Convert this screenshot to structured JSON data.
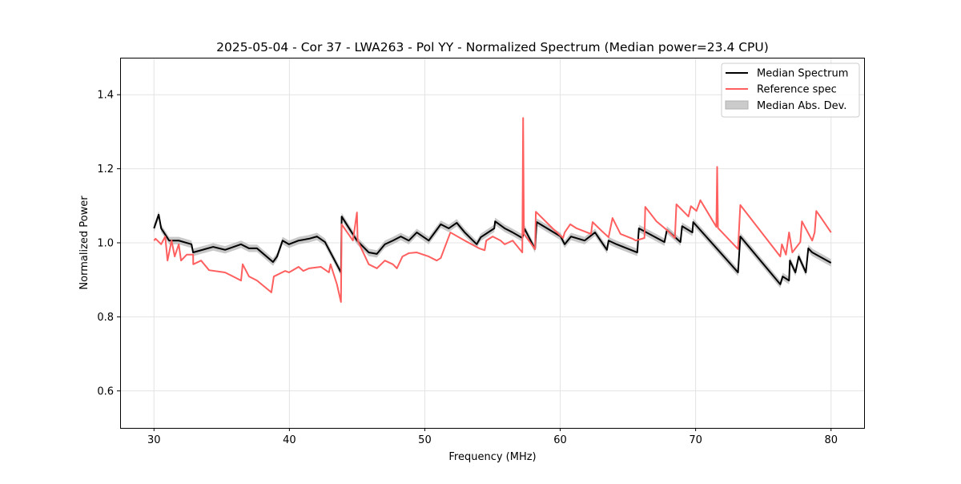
{
  "chart_data": {
    "type": "line",
    "title": "2025-05-04 - Cor 37 - LWA263 - Pol YY - Normalized Spectrum (Median power=23.4 CPU)",
    "xlabel": "Frequency (MHz)",
    "ylabel": "Normalized Power",
    "xlim": [
      27.5,
      82.5
    ],
    "ylim": [
      0.5,
      1.5
    ],
    "xticks": [
      30,
      40,
      50,
      60,
      70,
      80
    ],
    "xtick_labels": [
      "30",
      "40",
      "50",
      "60",
      "70",
      "80"
    ],
    "yticks": [
      0.6,
      0.8,
      1.0,
      1.2,
      1.4
    ],
    "ytick_labels": [
      "0.6",
      "0.8",
      "1.0",
      "1.2",
      "1.4"
    ],
    "grid": true,
    "legend_position": "top-right",
    "legend": [
      "Median Spectrum",
      "Reference spec",
      "Median Abs. Dev."
    ],
    "mad_halfwidth": 0.01,
    "colors": {
      "median": "#000000",
      "reference": "#ff5f5f",
      "mad": "#b0b0b0"
    },
    "series": [
      {
        "name": "Median Spectrum",
        "x": [
          30.0,
          30.35,
          30.53,
          31.12,
          31.83,
          32.77,
          32.89,
          34.37,
          35.25,
          36.43,
          37.02,
          37.61,
          38.79,
          39.09,
          39.5,
          39.97,
          40.68,
          41.45,
          42.04,
          42.63,
          43.81,
          43.86,
          44.99,
          45.86,
          46.46,
          47.05,
          47.64,
          48.23,
          48.82,
          49.41,
          50.29,
          51.18,
          51.77,
          52.36,
          52.95,
          53.83,
          54.13,
          55.13,
          55.19,
          55.9,
          56.49,
          57.2,
          57.38,
          58.14,
          58.26,
          60.03,
          60.33,
          60.8,
          61.8,
          62.57,
          63.45,
          63.57,
          64.16,
          65.69,
          65.81,
          67.7,
          67.88,
          68.88,
          69.0,
          69.76,
          69.82,
          73.13,
          73.3,
          76.25,
          76.43,
          76.9,
          76.96,
          77.37,
          77.61,
          78.14,
          78.32,
          78.61,
          80.0
        ],
        "y": [
          1.039,
          1.076,
          1.039,
          1.006,
          1.006,
          0.996,
          0.974,
          0.989,
          0.981,
          0.996,
          0.985,
          0.985,
          0.948,
          0.963,
          1.006,
          0.996,
          1.006,
          1.011,
          1.017,
          1.002,
          0.92,
          1.071,
          1.006,
          0.974,
          0.97,
          0.996,
          1.006,
          1.017,
          1.006,
          1.028,
          1.006,
          1.05,
          1.039,
          1.054,
          1.028,
          0.996,
          1.015,
          1.039,
          1.058,
          1.039,
          1.028,
          1.013,
          1.037,
          0.983,
          1.056,
          1.017,
          0.996,
          1.017,
          1.006,
          1.028,
          0.981,
          1.006,
          0.996,
          0.974,
          1.039,
          1.002,
          1.035,
          1.002,
          1.045,
          1.028,
          1.056,
          0.92,
          1.017,
          0.888,
          0.909,
          0.898,
          0.952,
          0.92,
          0.963,
          0.92,
          0.985,
          0.974,
          0.946
        ]
      },
      {
        "name": "Reference spec",
        "x": [
          30.0,
          30.12,
          30.53,
          30.83,
          31.0,
          31.3,
          31.53,
          31.83,
          32.0,
          32.42,
          32.89,
          32.9,
          33.48,
          34.07,
          35.25,
          35.84,
          36.43,
          36.55,
          37.02,
          37.61,
          38.67,
          38.85,
          39.68,
          39.97,
          40.68,
          41.03,
          41.45,
          42.33,
          42.92,
          43.04,
          43.51,
          43.81,
          43.86,
          44.69,
          44.99,
          45.04,
          45.86,
          46.46,
          47.05,
          47.64,
          47.94,
          48.35,
          48.82,
          49.41,
          50.29,
          50.88,
          51.18,
          51.89,
          52.95,
          54.01,
          54.42,
          54.54,
          55.01,
          55.6,
          55.9,
          56.49,
          57.2,
          57.26,
          57.32,
          58.14,
          58.2,
          59.44,
          60.21,
          60.33,
          60.74,
          61.21,
          62.27,
          62.39,
          62.98,
          63.57,
          63.86,
          64.45,
          65.34,
          65.58,
          66.22,
          66.28,
          67.11,
          67.99,
          68.47,
          68.58,
          69.47,
          69.65,
          70.06,
          70.35,
          71.53,
          71.59,
          71.65,
          73.13,
          73.3,
          76.25,
          76.37,
          76.67,
          76.9,
          77.14,
          77.73,
          77.85,
          78.61,
          78.79,
          78.91,
          79.2,
          80.0
        ],
        "y": [
          1.006,
          1.011,
          0.996,
          1.017,
          0.952,
          1.006,
          0.963,
          0.996,
          0.952,
          0.968,
          0.968,
          0.942,
          0.952,
          0.926,
          0.92,
          0.909,
          0.898,
          0.942,
          0.909,
          0.898,
          0.866,
          0.909,
          0.924,
          0.92,
          0.935,
          0.924,
          0.931,
          0.935,
          0.92,
          0.942,
          0.888,
          0.84,
          1.05,
          1.006,
          1.082,
          1.006,
          0.942,
          0.931,
          0.952,
          0.942,
          0.931,
          0.963,
          0.972,
          0.974,
          0.963,
          0.952,
          0.959,
          1.028,
          1.006,
          0.985,
          0.98,
          1.006,
          1.017,
          1.006,
          0.996,
          1.006,
          0.974,
          1.337,
          1.024,
          0.983,
          1.084,
          1.039,
          1.013,
          1.028,
          1.05,
          1.039,
          1.024,
          1.056,
          1.035,
          1.015,
          1.067,
          1.024,
          1.011,
          1.006,
          1.013,
          1.097,
          1.058,
          1.031,
          1.013,
          1.104,
          1.071,
          1.099,
          1.086,
          1.115,
          1.043,
          1.205,
          1.04,
          0.983,
          1.102,
          0.963,
          0.996,
          0.968,
          1.028,
          0.974,
          1.002,
          1.058,
          1.006,
          1.028,
          1.086,
          1.071,
          1.028
        ]
      }
    ]
  }
}
